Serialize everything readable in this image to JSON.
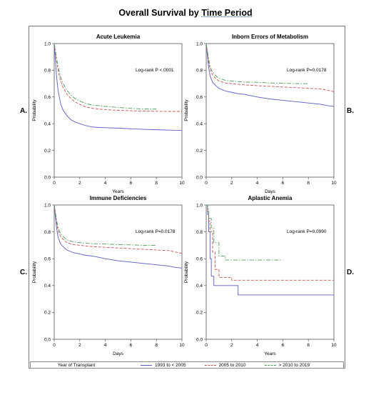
{
  "title_prefix": "Overall Survival by ",
  "title_underlined": "Time Period",
  "colors": {
    "s1": "#5b5bc8",
    "s2": "#c85555",
    "s3": "#4f9a5a"
  },
  "legend": {
    "title": "Year of Transplant",
    "items": [
      {
        "label": "1993 to < 2005",
        "color": "#5b5bc8",
        "dash": ""
      },
      {
        "label": "2005 to 2010",
        "color": "#c85555",
        "dash": "4,2"
      },
      {
        "label": "> 2010 to 2019",
        "color": "#4f9a5a",
        "dash": "6,2,1.5,2"
      }
    ]
  },
  "chart_data": [
    {
      "type": "line",
      "title": "Acute Leukemia",
      "panel_letter": "A.",
      "xlabel": "Years",
      "ylabel": "Probability",
      "annotation": "Log-rank P <.0001",
      "xlim": [
        0,
        10
      ],
      "ylim": [
        0,
        1
      ],
      "xticks": [
        0,
        2,
        4,
        6,
        8,
        10
      ],
      "yticks": [
        0,
        0.2,
        0.4,
        0.6,
        0.8,
        1
      ],
      "ytick_labels": [
        "0.0",
        "0.2",
        "0.4",
        "0.6",
        "0.8",
        "1.0"
      ],
      "series": [
        {
          "name": "1993 to < 2005",
          "x": [
            0,
            0.1,
            0.2,
            0.3,
            0.5,
            0.7,
            1,
            1.3,
            1.6,
            2,
            2.5,
            3,
            4,
            5,
            6,
            7,
            8,
            9,
            10
          ],
          "y": [
            1,
            0.86,
            0.74,
            0.65,
            0.55,
            0.5,
            0.46,
            0.43,
            0.415,
            0.4,
            0.385,
            0.375,
            0.37,
            0.367,
            0.362,
            0.358,
            0.355,
            0.352,
            0.35
          ]
        },
        {
          "name": "2005 to 2010",
          "x": [
            0,
            0.1,
            0.2,
            0.3,
            0.5,
            0.7,
            1,
            1.3,
            1.6,
            2,
            2.5,
            3,
            4,
            5,
            6,
            7,
            8,
            9,
            10
          ],
          "y": [
            1,
            0.93,
            0.86,
            0.8,
            0.72,
            0.67,
            0.62,
            0.59,
            0.565,
            0.545,
            0.525,
            0.515,
            0.505,
            0.5,
            0.497,
            0.495,
            0.493,
            0.492,
            0.492
          ]
        },
        {
          "name": "> 2010 to 2019",
          "x": [
            0,
            0.1,
            0.2,
            0.3,
            0.5,
            0.7,
            1,
            1.3,
            1.6,
            2,
            2.5,
            3,
            4,
            5,
            6,
            7,
            8
          ],
          "y": [
            1,
            0.94,
            0.88,
            0.83,
            0.75,
            0.7,
            0.65,
            0.615,
            0.59,
            0.57,
            0.55,
            0.54,
            0.53,
            0.522,
            0.515,
            0.51,
            0.51
          ]
        }
      ]
    },
    {
      "type": "line",
      "title": "Inborn Errors of Metabolism",
      "panel_letter": "B.",
      "xlabel": "Days",
      "ylabel": "Probability",
      "annotation": "Log-rank P=0.0178",
      "xlim": [
        0,
        10
      ],
      "ylim": [
        0,
        1
      ],
      "xticks": [
        0,
        2,
        4,
        6,
        8,
        10
      ],
      "yticks": [
        0,
        0.2,
        0.4,
        0.6,
        0.8,
        1
      ],
      "ytick_labels": [
        "0.0",
        "0.2",
        "0.4",
        "0.6",
        "0.8",
        "1.0"
      ],
      "series": [
        {
          "name": "1993 to < 2005",
          "x": [
            0,
            0.1,
            0.2,
            0.3,
            0.5,
            0.8,
            1,
            1.5,
            2,
            2.5,
            3,
            4,
            5,
            6,
            7,
            8,
            9,
            9.5,
            10
          ],
          "y": [
            1,
            0.9,
            0.82,
            0.76,
            0.71,
            0.68,
            0.665,
            0.645,
            0.635,
            0.625,
            0.62,
            0.6,
            0.585,
            0.575,
            0.565,
            0.555,
            0.545,
            0.535,
            0.53
          ]
        },
        {
          "name": "2005 to 2010",
          "x": [
            0,
            0.1,
            0.2,
            0.3,
            0.5,
            0.8,
            1,
            1.5,
            2,
            2.5,
            3,
            4,
            5,
            6,
            7,
            8,
            9,
            9.5,
            10
          ],
          "y": [
            1,
            0.93,
            0.86,
            0.81,
            0.765,
            0.735,
            0.72,
            0.705,
            0.7,
            0.695,
            0.69,
            0.685,
            0.68,
            0.675,
            0.67,
            0.665,
            0.66,
            0.65,
            0.64
          ]
        },
        {
          "name": "> 2010 to 2019",
          "x": [
            0,
            0.1,
            0.2,
            0.3,
            0.5,
            0.8,
            1,
            1.5,
            2,
            2.5,
            3,
            4,
            5,
            6,
            7,
            8
          ],
          "y": [
            1,
            0.94,
            0.88,
            0.83,
            0.785,
            0.755,
            0.74,
            0.725,
            0.72,
            0.715,
            0.712,
            0.71,
            0.705,
            0.703,
            0.7,
            0.7
          ]
        }
      ]
    },
    {
      "type": "line",
      "title": "Immune Deficiencies",
      "panel_letter": "C.",
      "xlabel": "Days",
      "ylabel": "Probability",
      "annotation": "Log-rank P=0.0178",
      "xlim": [
        0,
        10
      ],
      "ylim": [
        0,
        1
      ],
      "xticks": [
        0,
        2,
        4,
        6,
        8,
        10
      ],
      "yticks": [
        0,
        0.2,
        0.4,
        0.6,
        0.8,
        1
      ],
      "ytick_labels": [
        "0.0",
        "0.2",
        "0.4",
        "0.6",
        "0.8",
        "1.0"
      ],
      "series": [
        {
          "name": "1993 to < 2005",
          "x": [
            0,
            0.1,
            0.2,
            0.3,
            0.5,
            0.8,
            1,
            1.5,
            2,
            2.5,
            3,
            4,
            5,
            6,
            7,
            8,
            9,
            9.5,
            10
          ],
          "y": [
            1,
            0.9,
            0.82,
            0.76,
            0.71,
            0.68,
            0.665,
            0.645,
            0.635,
            0.625,
            0.62,
            0.6,
            0.585,
            0.575,
            0.565,
            0.555,
            0.545,
            0.535,
            0.53
          ]
        },
        {
          "name": "2005 to 2010",
          "x": [
            0,
            0.1,
            0.2,
            0.3,
            0.5,
            0.8,
            1,
            1.5,
            2,
            2.5,
            3,
            4,
            5,
            6,
            7,
            8,
            9,
            9.5,
            10
          ],
          "y": [
            1,
            0.93,
            0.86,
            0.81,
            0.765,
            0.735,
            0.72,
            0.705,
            0.7,
            0.695,
            0.69,
            0.685,
            0.68,
            0.675,
            0.67,
            0.665,
            0.66,
            0.65,
            0.64
          ]
        },
        {
          "name": "> 2010 to 2019",
          "x": [
            0,
            0.1,
            0.2,
            0.3,
            0.5,
            0.8,
            1,
            1.5,
            2,
            2.5,
            3,
            4,
            5,
            6,
            7,
            8
          ],
          "y": [
            1,
            0.94,
            0.88,
            0.83,
            0.785,
            0.755,
            0.74,
            0.725,
            0.72,
            0.715,
            0.712,
            0.71,
            0.705,
            0.703,
            0.7,
            0.7
          ]
        }
      ]
    },
    {
      "type": "line",
      "title": "Aplastic Anemia",
      "panel_letter": "D.",
      "xlabel": "Years",
      "ylabel": "Probability",
      "annotation": "Log-rank P=0.0990",
      "xlim": [
        0,
        10
      ],
      "ylim": [
        0,
        1
      ],
      "xticks": [
        0,
        2,
        4,
        6,
        8,
        10
      ],
      "yticks": [
        0,
        0.2,
        0.4,
        0.6,
        0.8,
        1
      ],
      "ytick_labels": [
        "0.0",
        "0.2",
        "0.4",
        "0.6",
        "0.8",
        "1.0"
      ],
      "series": [
        {
          "name": "1993 to < 2005",
          "step": true,
          "x": [
            0,
            0.1,
            0.2,
            0.3,
            0.4,
            0.6,
            2.5,
            10
          ],
          "y": [
            1,
            0.93,
            0.8,
            0.6,
            0.47,
            0.4,
            0.33,
            0.33
          ]
        },
        {
          "name": "2005 to 2010",
          "step": true,
          "x": [
            0,
            0.1,
            0.2,
            0.3,
            0.5,
            0.7,
            1,
            2,
            10
          ],
          "y": [
            1,
            0.95,
            0.88,
            0.8,
            0.65,
            0.52,
            0.46,
            0.44,
            0.44
          ]
        },
        {
          "name": "> 2010 to 2019",
          "step": true,
          "x": [
            0,
            0.1,
            0.2,
            0.4,
            0.6,
            1,
            1.5,
            6
          ],
          "y": [
            1,
            0.97,
            0.9,
            0.83,
            0.72,
            0.62,
            0.59,
            0.59
          ]
        }
      ]
    }
  ]
}
